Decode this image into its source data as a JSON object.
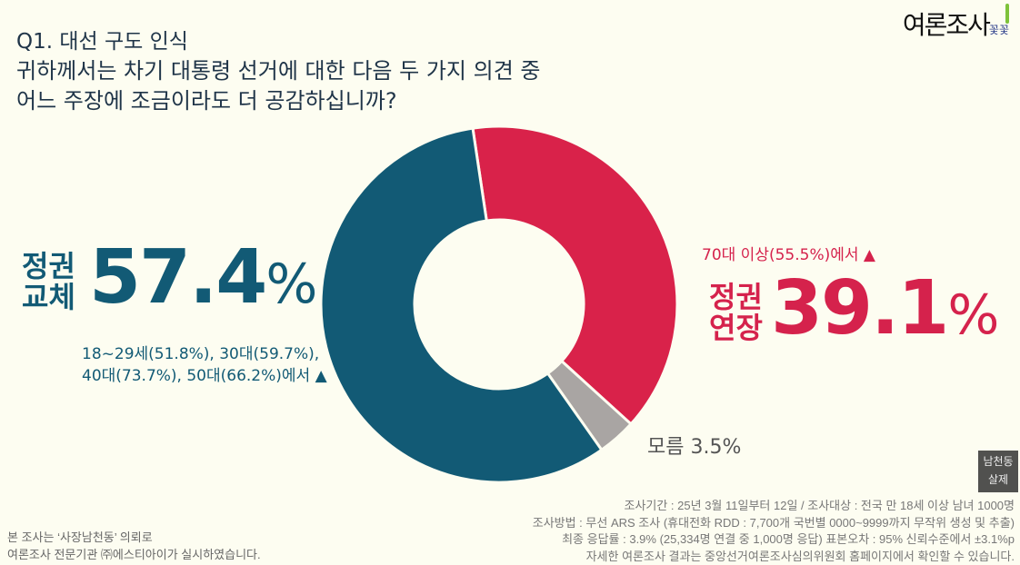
{
  "header": {
    "title": "Q1. 대선 구도 인식",
    "question_line1": "귀하께서는 차기 대통령 선거에 대한 다음 두 가지 의견 중",
    "question_line2": "어느 주장에 조금이라도 더 공감하십니까?"
  },
  "logo": {
    "text": "여론조사",
    "sub": "꽃꽃"
  },
  "chart_data": {
    "type": "pie",
    "donut": true,
    "slices": [
      {
        "name": "정권 연장",
        "value": 39.1,
        "color": "#d9224a"
      },
      {
        "name": "모름",
        "value": 3.5,
        "color": "#a9a5a3"
      },
      {
        "name": "정권 교체",
        "value": 57.4,
        "color": "#125a75"
      }
    ],
    "labels": {
      "blue_line1": "정권",
      "blue_line2": "교체",
      "blue_value": "57.4",
      "blue_pct": "%",
      "blue_note1": "18~29세(51.8%), 30대(59.7%),",
      "blue_note2": "40대(73.7%), 50대(66.2%)에서 ▲",
      "red_note": "70대 이상(55.5%)에서 ▲",
      "red_line1": "정권",
      "red_line2": "연장",
      "red_value": "39.1",
      "red_pct": "%",
      "gray": "모름 3.5%"
    }
  },
  "footer": {
    "left1": "본 조사는 ‘사장남천동’ 의뢰로",
    "left2": "여론조사 전문기관 ㈜에스티아이가 실시하였습니다.",
    "right1": "조사기간 : 25년 3월 11일부터 12일 / 조사대상 : 전국 만 18세 이상 남녀 1000명",
    "right2": "조사방법 : 무선 ARS 조사 (휴대전화 RDD : 7,700개 국번별 0000~9999까지 무작위 생성 및 추출)",
    "right3": "최종 응답률 : 3.9% (25,334명 연결 중 1,000명 응답) 표본오차 : 95% 신뢰수준에서 ±3.1%p",
    "right4": "자세한 여론조사 결과는 중앙선거여론조사심의위원회 홈페이지에서 확인할 수 있습니다."
  },
  "badge": {
    "line1": "남천동",
    "line2": "살제"
  }
}
